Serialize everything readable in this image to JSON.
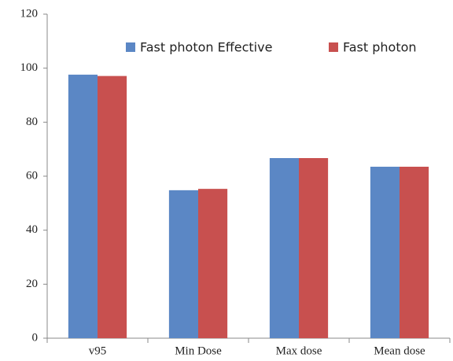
{
  "chart_data": {
    "type": "bar",
    "categories": [
      "v95",
      "Min Dose",
      "Max dose",
      "Mean dose"
    ],
    "series": [
      {
        "name": "Fast photon Effective",
        "color": "#5b87c5",
        "values": [
          97.6,
          54.8,
          66.7,
          63.5
        ]
      },
      {
        "name": "Fast photon",
        "color": "#c8504f",
        "values": [
          97.1,
          55.3,
          66.7,
          63.5
        ]
      }
    ],
    "ylim": [
      0,
      120
    ],
    "yticks": [
      0,
      20,
      40,
      60,
      80,
      100,
      120
    ],
    "legend": "top-right"
  }
}
